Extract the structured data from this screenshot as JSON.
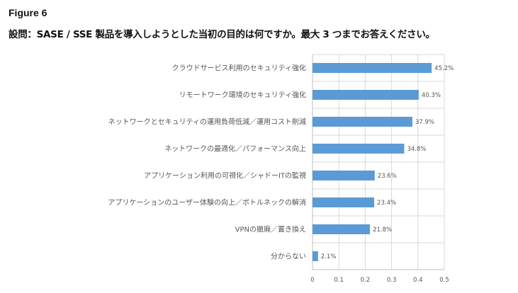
{
  "figure_label": "Figure 6",
  "title": "設問：SASE / SSE 製品を導入しようとした当初の目的は何ですか。最大 3 つまでお答えください。",
  "chart_data": {
    "type": "bar",
    "orientation": "horizontal",
    "categories": [
      "クラウドサービス利用のセキュリティ強化",
      "リモートワーク環境のセキュリティ強化",
      "ネットワークとセキュリティの運用負荷低減／運用コスト削減",
      "ネットワークの最適化／パフォーマンス向上",
      "アプリケーション利用の可視化／シャドーITの監視",
      "アプリケーションのユーザー体験の向上／ボトルネックの解消",
      "VPNの撤廃／置き換え",
      "分からない"
    ],
    "values": [
      0.452,
      0.403,
      0.379,
      0.348,
      0.236,
      0.234,
      0.218,
      0.021
    ],
    "data_labels": [
      "45.2%",
      "40.3%",
      "37.9%",
      "34.8%",
      "23.6%",
      "23.4%",
      "21.8%",
      "2.1%"
    ],
    "xlim": [
      0,
      0.5
    ],
    "xticks": [
      "0",
      "0.1",
      "0.2",
      "0.3",
      "0.4",
      "0.5"
    ],
    "grid": true,
    "bar_color": "#5b9bd5"
  }
}
